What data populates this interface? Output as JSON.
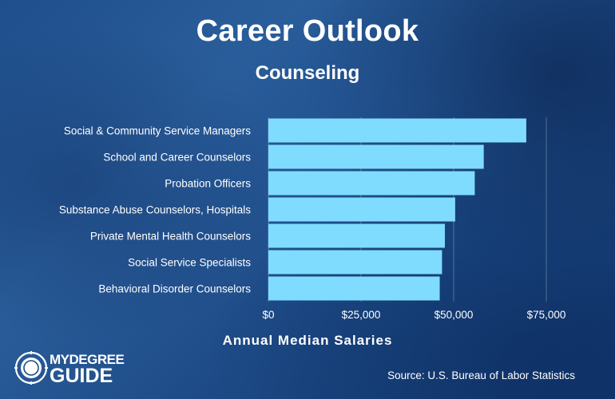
{
  "header": {
    "title": "Career Outlook",
    "subtitle": "Counseling"
  },
  "chart_data": {
    "type": "bar",
    "orientation": "horizontal",
    "categories": [
      "Social & Community Service Managers",
      "School and Career Counselors",
      "Probation Officers",
      "Substance Abuse Counselors, Hospitals",
      "Private Mental Health Counselors",
      "Social Service Specialists",
      "Behavioral Disorder Counselors"
    ],
    "values": [
      69600,
      58120,
      55690,
      50410,
      47630,
      46860,
      46240
    ],
    "xlabel": "Annual Median Salaries",
    "ylabel": "",
    "xlim": [
      0,
      75000
    ],
    "ticks": [
      0,
      25000,
      50000,
      75000
    ],
    "tick_labels": [
      "$0",
      "$25,000",
      "$50,000",
      "$75,000"
    ],
    "bar_color": "#7fdcff",
    "grid": "vertical-lines"
  },
  "footer": {
    "source": "Source: U.S. Bureau of Labor Statistics",
    "logo_top": "MYDEGREE",
    "logo_bottom": "GUIDE"
  }
}
